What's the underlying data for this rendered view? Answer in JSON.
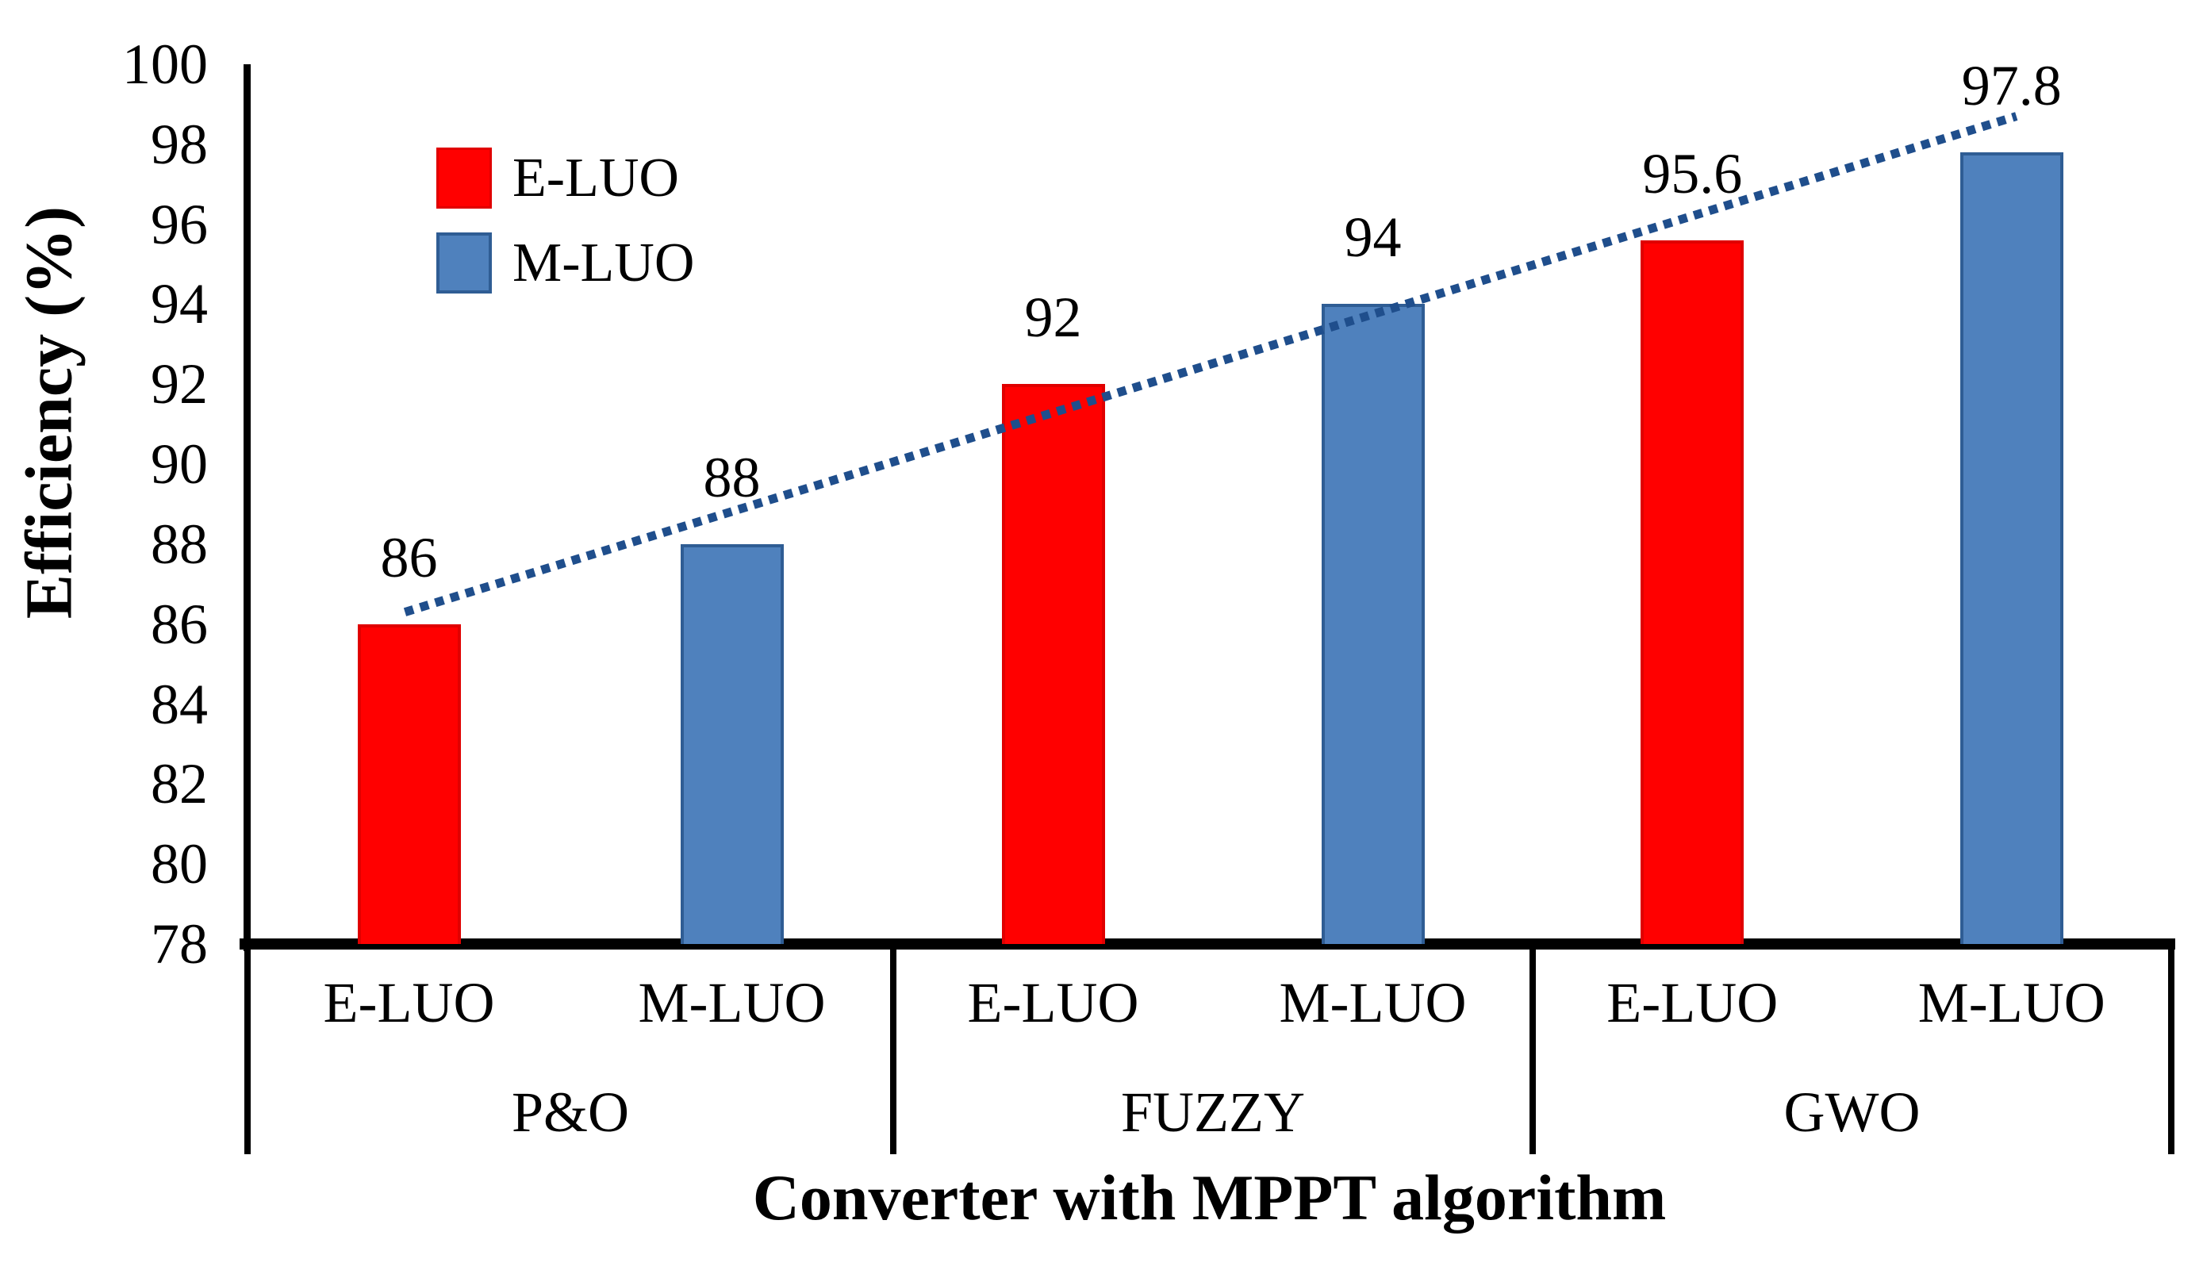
{
  "chart_data": {
    "type": "bar",
    "title": "",
    "xlabel": "Converter with MPPT algorithm",
    "ylabel": "Efficiency (%)",
    "ylim": [
      78,
      100
    ],
    "yticks": [
      78,
      80,
      82,
      84,
      86,
      88,
      90,
      92,
      94,
      96,
      98,
      100
    ],
    "grid": false,
    "legend_position": "top-left",
    "groups": [
      "P&O",
      "FUZZY",
      "GWO"
    ],
    "series": [
      {
        "name": "E-LUO",
        "values": [
          86,
          92,
          95.6
        ],
        "labels": [
          "86",
          "92",
          "95.6"
        ],
        "fill": "#ff0000",
        "border": "#e00000"
      },
      {
        "name": "M-LUO",
        "values": [
          88,
          94,
          97.8
        ],
        "labels": [
          "88",
          "94",
          "97.8"
        ],
        "fill": "#4f81bd",
        "border": "#2f5d94"
      }
    ],
    "trendline": {
      "type": "linear",
      "style": "dotted",
      "color": "#1f4e8c",
      "start_value": 86.3,
      "end_value": 98.7
    }
  },
  "colors": {
    "axis": "#000000",
    "text": "#000000",
    "background": "#ffffff"
  }
}
